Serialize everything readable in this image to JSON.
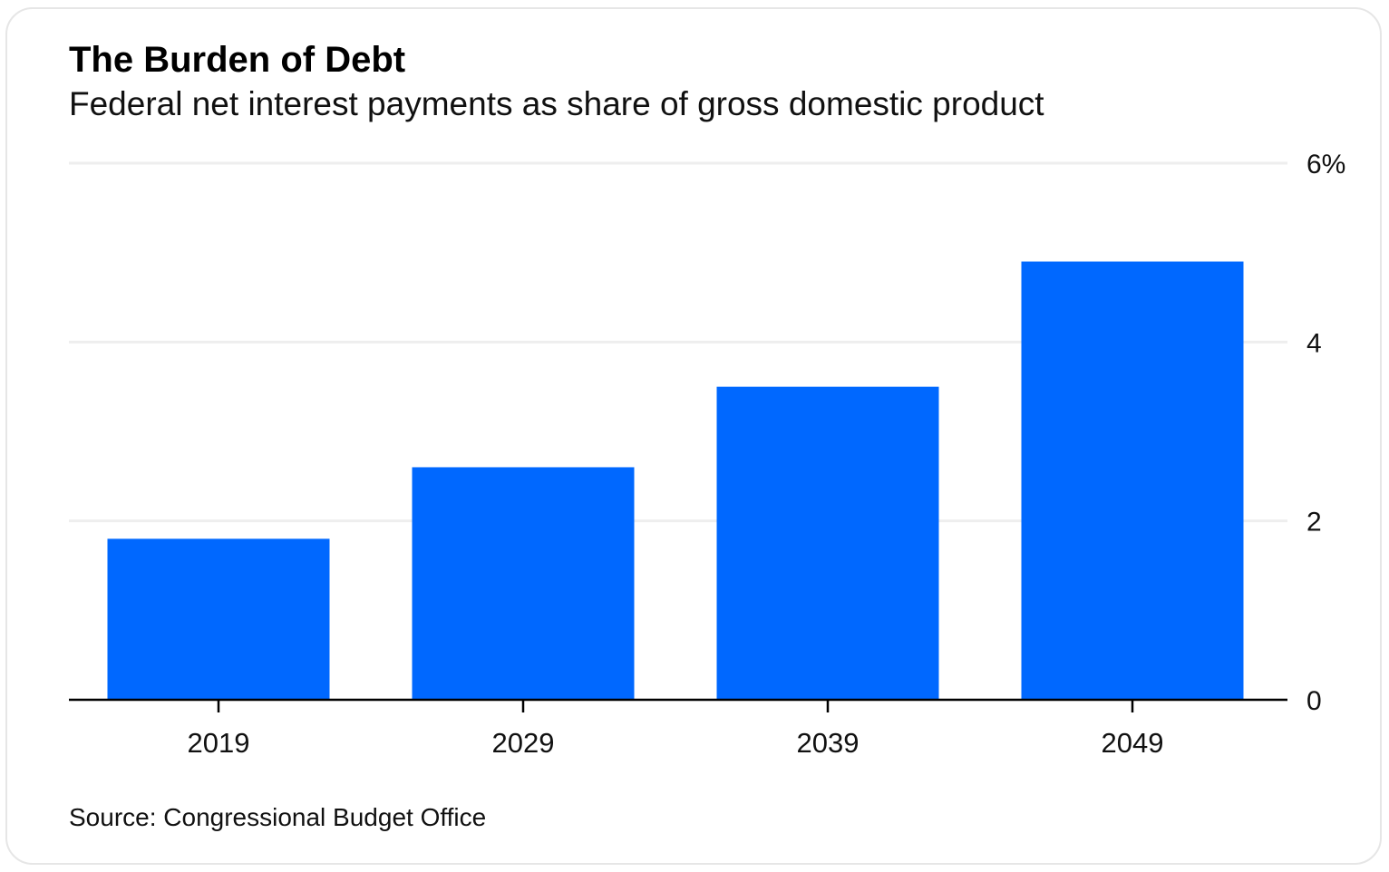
{
  "header": {
    "title": "The Burden of Debt",
    "subtitle": "Federal net interest payments as share of gross domestic product"
  },
  "footer": {
    "source": "Source: Congressional Budget Office"
  },
  "colors": {
    "bar": "#0068ff",
    "gridline": "#eeeeee",
    "axis": "#000000",
    "text": "#111111"
  },
  "chart_data": {
    "type": "bar",
    "title": "The Burden of Debt",
    "subtitle": "Federal net interest payments as share of gross domestic product",
    "categories": [
      "2019",
      "2029",
      "2039",
      "2049"
    ],
    "values": [
      1.8,
      2.6,
      3.5,
      4.9
    ],
    "ylim": [
      0,
      6
    ],
    "yticks": [
      0,
      2,
      4,
      6
    ],
    "ytick_labels": [
      "0",
      "2",
      "4",
      "6%"
    ],
    "xlabel": "",
    "ylabel": "",
    "grid": true,
    "y_axis_side": "right",
    "source": "Source: Congressional Budget Office"
  }
}
